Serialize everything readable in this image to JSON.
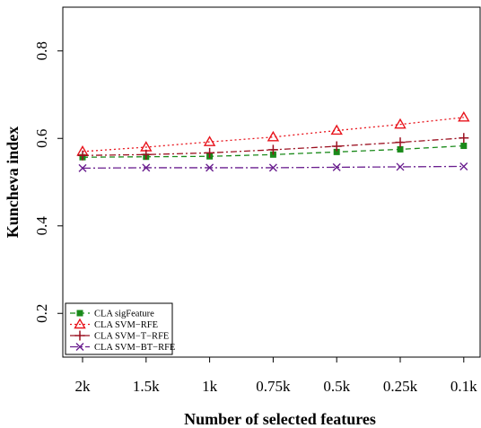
{
  "chart_data": {
    "type": "line",
    "title": "",
    "xlabel": "Number of selected features",
    "ylabel": "Kuncheva index",
    "categories": [
      "2k",
      "1.5k",
      "1k",
      "0.75k",
      "0.5k",
      "0.25k",
      "0.1k"
    ],
    "yticks": [
      0.2,
      0.4,
      0.6,
      0.8
    ],
    "ytick_labels": [
      "0.2",
      "0.4",
      "0.6",
      "0.8"
    ],
    "ylim": [
      0.1,
      0.9
    ],
    "grid": false,
    "legend_position": "bottom-left",
    "series": [
      {
        "name": "CLA sigFeature",
        "color": "#1a8a1a",
        "marker": "square",
        "line": "dashed",
        "values": [
          0.557,
          0.558,
          0.559,
          0.563,
          0.569,
          0.575,
          0.583
        ]
      },
      {
        "name": "CLA SVM−RFE",
        "color": "#e8141c",
        "marker": "triangle",
        "line": "dotted",
        "values": [
          0.57,
          0.58,
          0.592,
          0.603,
          0.618,
          0.632,
          0.648
        ]
      },
      {
        "name": "CLA SVM−T−RFE",
        "color": "#9b1020",
        "marker": "plus",
        "line": "dashdot",
        "values": [
          0.561,
          0.563,
          0.567,
          0.574,
          0.582,
          0.591,
          0.601
        ]
      },
      {
        "name": "CLA SVM−BT−RFE",
        "color": "#6a1f8f",
        "marker": "cross",
        "line": "longdash",
        "values": [
          0.532,
          0.533,
          0.533,
          0.533,
          0.534,
          0.535,
          0.536
        ]
      }
    ]
  }
}
